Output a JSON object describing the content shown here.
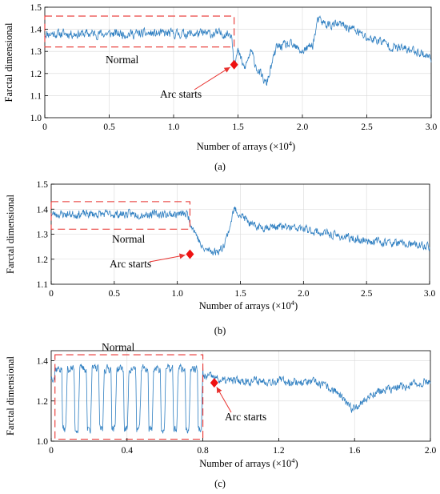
{
  "colors": {
    "series": "#2f7fc1",
    "box": "#e8322f",
    "marker": "#ee1111",
    "arrow": "#e8322f",
    "grid": "#d9d9d9"
  },
  "chart_data": [
    {
      "type": "line",
      "panel_label": "(a)",
      "ylabel": "Farctal dimensional",
      "xlabel_text": "Number of arrays",
      "xlabel_unit": "(×10",
      "xlabel_exp": "4",
      "xlabel_close": ")",
      "xlim": [
        0,
        3.0
      ],
      "ylim": [
        1.0,
        1.5
      ],
      "xticks": [
        "0",
        "0.5",
        "1.0",
        "1.5",
        "2.0",
        "2.5",
        "3.0"
      ],
      "yticks": [
        "1.0",
        "1.1",
        "1.2",
        "1.3",
        "1.4",
        "1.5"
      ],
      "grid": true,
      "normal_box": {
        "label": "Normal",
        "x": [
          0,
          1.47
        ],
        "y": [
          1.32,
          1.46
        ]
      },
      "arc_start": {
        "label": "Arc starts",
        "x": 1.47,
        "y": 1.24
      },
      "series_profile": [
        [
          0,
          1.38
        ],
        [
          0.2,
          1.38
        ],
        [
          0.5,
          1.38
        ],
        [
          0.8,
          1.38
        ],
        [
          1.1,
          1.38
        ],
        [
          1.45,
          1.38
        ],
        [
          1.47,
          1.25
        ],
        [
          1.5,
          1.3
        ],
        [
          1.55,
          1.22
        ],
        [
          1.6,
          1.3
        ],
        [
          1.65,
          1.22
        ],
        [
          1.72,
          1.15
        ],
        [
          1.8,
          1.32
        ],
        [
          1.9,
          1.33
        ],
        [
          2.0,
          1.3
        ],
        [
          2.08,
          1.33
        ],
        [
          2.12,
          1.44
        ],
        [
          2.2,
          1.42
        ],
        [
          2.3,
          1.42
        ],
        [
          2.4,
          1.4
        ],
        [
          2.5,
          1.36
        ],
        [
          2.6,
          1.35
        ],
        [
          2.7,
          1.32
        ],
        [
          2.8,
          1.31
        ],
        [
          2.9,
          1.3
        ],
        [
          3.0,
          1.27
        ]
      ],
      "series_noise": 0.018,
      "seed": 11
    },
    {
      "type": "line",
      "panel_label": "(b)",
      "ylabel": "Farctal dimensional",
      "xlabel_text": "Number of arrays",
      "xlabel_unit": "(×10",
      "xlabel_exp": "4",
      "xlabel_close": ")",
      "xlim": [
        0,
        3.0
      ],
      "ylim": [
        1.1,
        1.5
      ],
      "xticks": [
        "0",
        "0.5",
        "1.0",
        "1.5",
        "2.0",
        "2.5",
        "3.0"
      ],
      "yticks": [
        "1.1",
        "1.2",
        "1.3",
        "1.4",
        "1.5"
      ],
      "grid": true,
      "normal_box": {
        "label": "Normal",
        "x": [
          0,
          1.1
        ],
        "y": [
          1.32,
          1.43
        ]
      },
      "arc_start": {
        "label": "Arc starts",
        "x": 1.1,
        "y": 1.22
      },
      "series_profile": [
        [
          0,
          1.38
        ],
        [
          0.3,
          1.38
        ],
        [
          0.6,
          1.38
        ],
        [
          0.9,
          1.38
        ],
        [
          1.08,
          1.38
        ],
        [
          1.12,
          1.33
        ],
        [
          1.15,
          1.3
        ],
        [
          1.2,
          1.24
        ],
        [
          1.3,
          1.23
        ],
        [
          1.35,
          1.24
        ],
        [
          1.4,
          1.3
        ],
        [
          1.45,
          1.4
        ],
        [
          1.5,
          1.38
        ],
        [
          1.6,
          1.33
        ],
        [
          1.8,
          1.33
        ],
        [
          2.0,
          1.32
        ],
        [
          2.2,
          1.3
        ],
        [
          2.4,
          1.28
        ],
        [
          2.6,
          1.27
        ],
        [
          2.8,
          1.26
        ],
        [
          3.0,
          1.25
        ]
      ],
      "series_noise": 0.014,
      "seed": 23
    },
    {
      "type": "line",
      "panel_label": "(c)",
      "ylabel": "Farctal dimensional",
      "xlabel_text": "Number of arrays",
      "xlabel_unit": "(×10",
      "xlabel_exp": "4",
      "xlabel_close": ")",
      "xlim": [
        0,
        2.0
      ],
      "ylim": [
        1.0,
        1.45
      ],
      "xticks": [
        "0",
        "0.4",
        "0.8",
        "1.2",
        "1.6",
        "2.0"
      ],
      "yticks": [
        "1.0",
        "1.2",
        "1.4"
      ],
      "grid": true,
      "normal_box": {
        "label": "Normal",
        "x": [
          0.02,
          0.8
        ],
        "y": [
          1.01,
          1.43
        ]
      },
      "arc_start": {
        "label": "Arc starts",
        "x": 0.86,
        "y": 1.29
      },
      "series_profile": [
        [
          0,
          1.32
        ],
        [
          0.85,
          1.32
        ],
        [
          0.9,
          1.3
        ],
        [
          1.0,
          1.3
        ],
        [
          1.2,
          1.3
        ],
        [
          1.4,
          1.29
        ],
        [
          1.5,
          1.25
        ],
        [
          1.58,
          1.16
        ],
        [
          1.65,
          1.2
        ],
        [
          1.7,
          1.24
        ],
        [
          1.8,
          1.26
        ],
        [
          1.9,
          1.28
        ],
        [
          2.0,
          1.3
        ]
      ],
      "oscillation": {
        "x": [
          0.02,
          0.8
        ],
        "cycles": 12,
        "high": 1.36,
        "low": 1.06
      },
      "series_noise": 0.018,
      "seed": 37
    }
  ]
}
